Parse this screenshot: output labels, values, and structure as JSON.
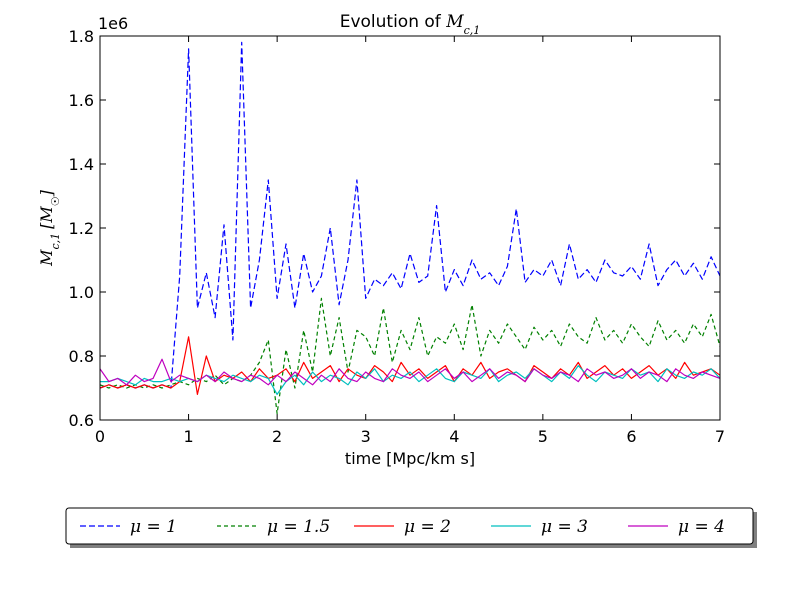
{
  "chart_data": {
    "type": "line",
    "title_prefix": "Evolution of ",
    "title_math": "M",
    "title_math_sub": "c,1",
    "xlabel": "time [Mpc/km s]",
    "ylabel_math": "M",
    "ylabel_math_sub": "c,1",
    "ylabel_unit": "[M",
    "ylabel_unit_sub": "☉",
    "ylabel_unit_close": "]",
    "y_offset_label": "1e6",
    "xlim": [
      0,
      7
    ],
    "ylim": [
      0.6,
      1.8
    ],
    "x_ticks": [
      0,
      1,
      2,
      3,
      4,
      5,
      6,
      7
    ],
    "x_tick_labels": [
      "0",
      "1",
      "2",
      "3",
      "4",
      "5",
      "6",
      "7"
    ],
    "y_ticks": [
      0.6,
      0.8,
      1.0,
      1.2,
      1.4,
      1.6,
      1.8
    ],
    "y_tick_labels": [
      "0.6",
      "0.8",
      "1.0",
      "1.2",
      "1.4",
      "1.6",
      "1.8"
    ],
    "grid": false,
    "legend_placement": "below-plot",
    "x": [
      0.0,
      0.1,
      0.2,
      0.3,
      0.4,
      0.5,
      0.6,
      0.7,
      0.8,
      0.9,
      1.0,
      1.1,
      1.2,
      1.3,
      1.4,
      1.5,
      1.6,
      1.7,
      1.8,
      1.9,
      2.0,
      2.1,
      2.2,
      2.3,
      2.4,
      2.5,
      2.6,
      2.7,
      2.8,
      2.9,
      3.0,
      3.1,
      3.2,
      3.3,
      3.4,
      3.5,
      3.6,
      3.7,
      3.8,
      3.9,
      4.0,
      4.1,
      4.2,
      4.3,
      4.4,
      4.5,
      4.6,
      4.7,
      4.8,
      4.9,
      5.0,
      5.1,
      5.2,
      5.3,
      5.4,
      5.5,
      5.6,
      5.7,
      5.8,
      5.9,
      6.0,
      6.1,
      6.2,
      6.3,
      6.4,
      6.5,
      6.6,
      6.7,
      6.8,
      6.9,
      7.0
    ],
    "series": [
      {
        "name": "μ=1",
        "legend_label": "μ = 1",
        "color": "#0000ff",
        "dash": "6,3",
        "values": [
          0.7,
          0.71,
          0.7,
          0.71,
          0.7,
          0.71,
          0.7,
          0.71,
          0.7,
          1.05,
          1.76,
          0.95,
          1.06,
          0.92,
          1.21,
          0.85,
          1.78,
          0.95,
          1.1,
          1.35,
          0.98,
          1.15,
          0.95,
          1.12,
          1.0,
          1.05,
          1.2,
          0.96,
          1.1,
          1.35,
          0.98,
          1.04,
          1.02,
          1.06,
          1.01,
          1.12,
          1.03,
          1.05,
          1.27,
          1.0,
          1.07,
          1.02,
          1.1,
          1.04,
          1.06,
          1.02,
          1.08,
          1.26,
          1.03,
          1.07,
          1.05,
          1.1,
          1.02,
          1.15,
          1.04,
          1.07,
          1.03,
          1.1,
          1.06,
          1.05,
          1.08,
          1.04,
          1.15,
          1.02,
          1.07,
          1.1,
          1.05,
          1.09,
          1.04,
          1.11,
          1.05
        ]
      },
      {
        "name": "μ=1.5",
        "legend_label": "μ = 1.5",
        "color": "#008000",
        "dash": "4,3",
        "values": [
          0.71,
          0.7,
          0.71,
          0.7,
          0.71,
          0.7,
          0.71,
          0.7,
          0.71,
          0.72,
          0.71,
          0.73,
          0.72,
          0.74,
          0.71,
          0.73,
          0.72,
          0.74,
          0.78,
          0.85,
          0.62,
          0.82,
          0.7,
          0.88,
          0.75,
          0.98,
          0.8,
          0.92,
          0.75,
          0.88,
          0.86,
          0.8,
          0.95,
          0.78,
          0.88,
          0.82,
          0.92,
          0.8,
          0.86,
          0.84,
          0.9,
          0.82,
          0.96,
          0.8,
          0.88,
          0.84,
          0.9,
          0.86,
          0.82,
          0.89,
          0.85,
          0.88,
          0.83,
          0.9,
          0.86,
          0.84,
          0.92,
          0.85,
          0.88,
          0.84,
          0.9,
          0.86,
          0.83,
          0.91,
          0.85,
          0.88,
          0.84,
          0.9,
          0.86,
          0.93,
          0.83
        ]
      },
      {
        "name": "μ=2",
        "legend_label": "μ = 2",
        "color": "#ff0000",
        "dash": "",
        "values": [
          0.7,
          0.71,
          0.7,
          0.71,
          0.7,
          0.71,
          0.7,
          0.71,
          0.7,
          0.72,
          0.86,
          0.68,
          0.8,
          0.72,
          0.74,
          0.73,
          0.75,
          0.72,
          0.76,
          0.73,
          0.74,
          0.76,
          0.72,
          0.78,
          0.73,
          0.75,
          0.77,
          0.72,
          0.76,
          0.74,
          0.73,
          0.77,
          0.75,
          0.72,
          0.78,
          0.74,
          0.76,
          0.73,
          0.75,
          0.77,
          0.72,
          0.76,
          0.74,
          0.78,
          0.73,
          0.75,
          0.76,
          0.74,
          0.72,
          0.77,
          0.75,
          0.73,
          0.76,
          0.74,
          0.78,
          0.73,
          0.75,
          0.77,
          0.74,
          0.76,
          0.73,
          0.75,
          0.77,
          0.74,
          0.76,
          0.73,
          0.78,
          0.74,
          0.75,
          0.76,
          0.74
        ]
      },
      {
        "name": "μ=3",
        "legend_label": "μ = 3",
        "color": "#00bfbf",
        "dash": "",
        "values": [
          0.72,
          0.72,
          0.73,
          0.72,
          0.71,
          0.73,
          0.72,
          0.72,
          0.73,
          0.72,
          0.73,
          0.72,
          0.74,
          0.73,
          0.72,
          0.74,
          0.73,
          0.72,
          0.74,
          0.73,
          0.68,
          0.72,
          0.74,
          0.71,
          0.75,
          0.72,
          0.74,
          0.73,
          0.71,
          0.75,
          0.73,
          0.76,
          0.72,
          0.74,
          0.73,
          0.75,
          0.72,
          0.74,
          0.76,
          0.73,
          0.72,
          0.75,
          0.74,
          0.73,
          0.76,
          0.72,
          0.74,
          0.75,
          0.73,
          0.76,
          0.74,
          0.72,
          0.75,
          0.73,
          0.77,
          0.74,
          0.72,
          0.75,
          0.74,
          0.73,
          0.76,
          0.74,
          0.75,
          0.72,
          0.76,
          0.74,
          0.73,
          0.75,
          0.74,
          0.76,
          0.73
        ]
      },
      {
        "name": "μ=4",
        "legend_label": "μ = 4",
        "color": "#bf00bf",
        "dash": "",
        "values": [
          0.76,
          0.72,
          0.73,
          0.71,
          0.74,
          0.72,
          0.73,
          0.79,
          0.72,
          0.74,
          0.73,
          0.72,
          0.74,
          0.72,
          0.75,
          0.73,
          0.72,
          0.74,
          0.73,
          0.71,
          0.74,
          0.72,
          0.75,
          0.73,
          0.71,
          0.74,
          0.72,
          0.76,
          0.73,
          0.72,
          0.75,
          0.73,
          0.72,
          0.76,
          0.74,
          0.73,
          0.75,
          0.72,
          0.74,
          0.76,
          0.73,
          0.75,
          0.72,
          0.74,
          0.76,
          0.73,
          0.75,
          0.74,
          0.72,
          0.76,
          0.74,
          0.73,
          0.75,
          0.74,
          0.72,
          0.76,
          0.74,
          0.75,
          0.73,
          0.74,
          0.76,
          0.73,
          0.75,
          0.74,
          0.72,
          0.76,
          0.74,
          0.73,
          0.75,
          0.74,
          0.73
        ]
      }
    ]
  }
}
